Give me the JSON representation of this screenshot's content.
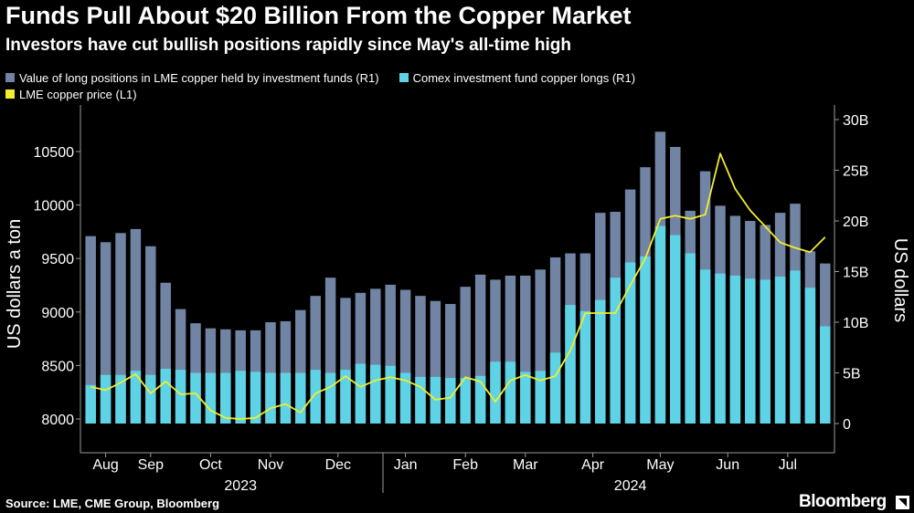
{
  "header": {
    "title": "Funds Pull About $20 Billion From the Copper Market",
    "subtitle": "Investors have cut bullish positions rapidly since May's all-time high"
  },
  "legend": {
    "lme_funds": "Value of long positions in LME copper held by investment funds  (R1)",
    "comex_funds": "Comex investment fund copper longs (R1)",
    "lme_price": "LME copper price (L1)"
  },
  "footer": {
    "source": "Source: LME, CME Group, Bloomberg",
    "logo": "Bloomberg"
  },
  "colors": {
    "background": "#000000",
    "lme_bar": "#7184a3",
    "comex_bar": "#5fd3e6",
    "price_line": "#f2ec2e",
    "axis": "#9a9a9a"
  },
  "chart_data": {
    "type": "bar",
    "title": "Funds Pull About $20 Billion From the Copper Market",
    "left_axis": {
      "label": "US dollars a ton",
      "ylim": [
        7950,
        10750
      ],
      "ticks": [
        8000,
        8500,
        9000,
        9500,
        10000,
        10500
      ],
      "tick_labels": [
        "8000",
        "8500",
        "9000",
        "9500",
        "10000",
        "10500"
      ]
    },
    "right_axis": {
      "label": "US dollars",
      "ylim": [
        0,
        30000000000
      ],
      "ticks": [
        0,
        5000000000,
        10000000000,
        15000000000,
        20000000000,
        25000000000,
        30000000000
      ],
      "tick_labels": [
        "0",
        "5B",
        "10B",
        "15B",
        "20B",
        "25B",
        "30B"
      ]
    },
    "month_labels": [
      "Aug",
      "Sep",
      "Oct",
      "Nov",
      "Dec",
      "Jan",
      "Feb",
      "Mar",
      "Apr",
      "May",
      "Jun",
      "Jul"
    ],
    "month_positions": [
      1.5,
      4.5,
      8.5,
      12.5,
      17,
      21.5,
      25.5,
      29.5,
      34,
      38.5,
      43,
      47
    ],
    "year_labels": [
      {
        "label": "2023",
        "position": 10.5
      },
      {
        "label": "2024",
        "position": 36.5
      }
    ],
    "year_divider_position": 20,
    "series": [
      {
        "name": "Value of long positions in LME copper held by investment funds (R1)",
        "axis": "right",
        "style": "bar",
        "units": "USD billions",
        "values": [
          18.5,
          17.9,
          18.8,
          19.2,
          17.5,
          13.9,
          11.3,
          9.9,
          9.4,
          9.3,
          9.2,
          9.2,
          10,
          10.1,
          11.2,
          12.6,
          14.4,
          12.4,
          12.9,
          13.3,
          13.7,
          13.2,
          12.6,
          12.1,
          11.8,
          13.5,
          14.7,
          14.2,
          14.6,
          14.6,
          15.2,
          16.4,
          16.8,
          16.8,
          20.8,
          20.9,
          23.1,
          25.3,
          28.8,
          27.3,
          21,
          24.9,
          21.5,
          20.5,
          20,
          19.6,
          20.8,
          21.7,
          17,
          15.8
        ],
        "values_in_billions": true
      },
      {
        "name": "Comex investment fund copper longs (R1)",
        "axis": "right",
        "style": "bar",
        "units": "USD billions",
        "values": [
          3.8,
          4.8,
          4.8,
          5.2,
          4.8,
          5.4,
          5.3,
          5.0,
          5.0,
          5.0,
          5.2,
          5.1,
          5.0,
          5.0,
          5.0,
          5.3,
          5.0,
          5.3,
          5.9,
          5.8,
          5.7,
          5.0,
          4.6,
          4.6,
          4.5,
          4.5,
          4.7,
          6.1,
          6.1,
          5.1,
          5.2,
          7.0,
          11.7,
          11.1,
          12.2,
          14.4,
          15.9,
          16.5,
          19.5,
          18.6,
          16.8,
          15.2,
          14.8,
          14.6,
          14.3,
          14.2,
          14.5,
          15.1,
          13.4,
          9.6
        ],
        "values_in_billions": true
      },
      {
        "name": "LME copper price (L1)",
        "axis": "left",
        "style": "line",
        "units": "USD per ton",
        "values": [
          8300,
          8270,
          8340,
          8420,
          8240,
          8350,
          8230,
          8240,
          8080,
          8010,
          8000,
          8010,
          8100,
          8140,
          8060,
          8240,
          8300,
          8400,
          8300,
          8360,
          8390,
          8360,
          8300,
          8180,
          8200,
          8390,
          8350,
          8160,
          8360,
          8410,
          8360,
          8400,
          8640,
          8990,
          8990,
          8990,
          9250,
          9500,
          9870,
          9900,
          9870,
          9910,
          10480,
          10150,
          9950,
          9800,
          9650,
          9600,
          9560,
          9700
        ]
      }
    ]
  }
}
